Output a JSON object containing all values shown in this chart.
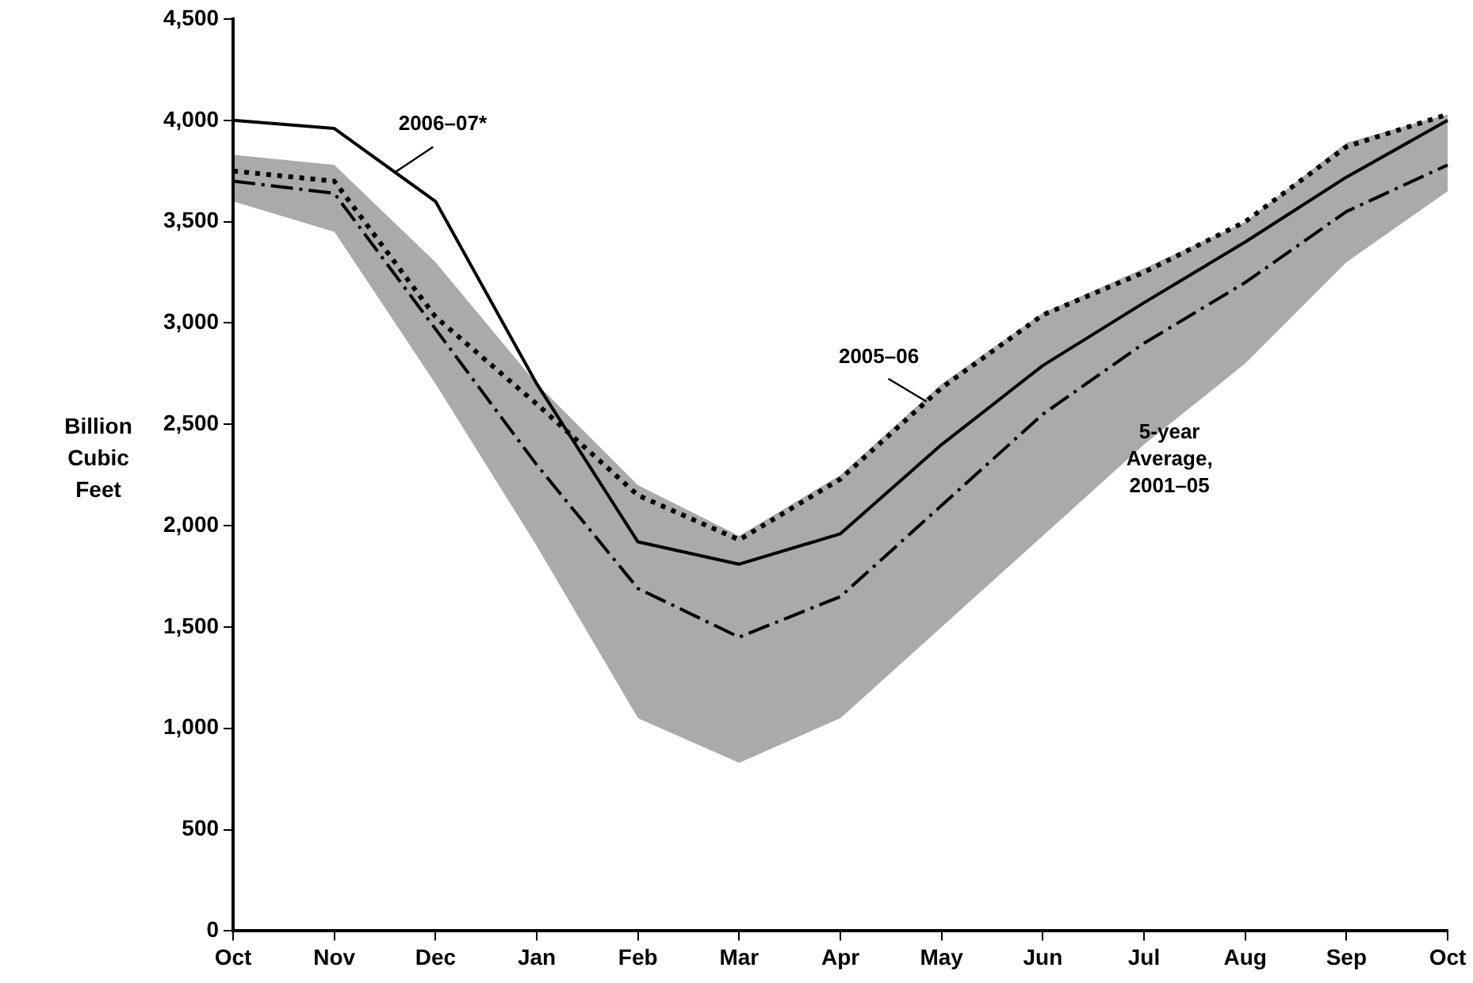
{
  "chart_data": {
    "type": "line",
    "ylabel": "Billion Cubic Feet",
    "categories": [
      "Oct",
      "Nov",
      "Dec",
      "Jan",
      "Feb",
      "Mar",
      "Apr",
      "May",
      "Jun",
      "Jul",
      "Aug",
      "Sep",
      "Oct"
    ],
    "series": [
      {
        "name": "2006–07*",
        "color": "#000000",
        "line_style": "solid",
        "values": [
          4000,
          3960,
          3600,
          2700,
          1920,
          1810,
          1960,
          2400,
          2790,
          3100,
          3400,
          3720,
          4000
        ]
      },
      {
        "name": "2005–06",
        "color": "#000000",
        "line_style": "dotted",
        "values": [
          3750,
          3700,
          3030,
          2600,
          2150,
          1930,
          2230,
          2680,
          3040,
          3250,
          3500,
          3870,
          4030
        ]
      },
      {
        "name": "5-year Average, 2001–05",
        "color": "#000000",
        "line_style": "dashed",
        "values": [
          3700,
          3640,
          2970,
          2300,
          1690,
          1450,
          1650,
          2100,
          2550,
          2900,
          3200,
          3550,
          3780
        ],
        "lower": [
          3600,
          3450,
          2700,
          1900,
          1050,
          830,
          1050,
          1500,
          1950,
          2400,
          2800,
          3300,
          3650
        ],
        "upper": [
          3830,
          3780,
          3300,
          2700,
          2200,
          1950,
          2250,
          2700,
          3050,
          3270,
          3500,
          3890,
          4030
        ]
      }
    ],
    "ylim": [
      0,
      4500
    ],
    "yticks": [
      0,
      500,
      {
        "value": 1000,
        "label": "1,000"
      },
      {
        "value": 1500,
        "label": "1,500"
      },
      {
        "value": 2000,
        "label": "2,000"
      },
      {
        "value": 2500,
        "label": "2,500"
      },
      {
        "value": 3000,
        "label": "3,000"
      },
      {
        "value": 3500,
        "label": "3,500"
      },
      {
        "value": 4000,
        "label": "4,000"
      },
      {
        "value": 4500,
        "label": "4,500"
      }
    ],
    "grid": false,
    "legend": false,
    "marker": "none"
  }
}
